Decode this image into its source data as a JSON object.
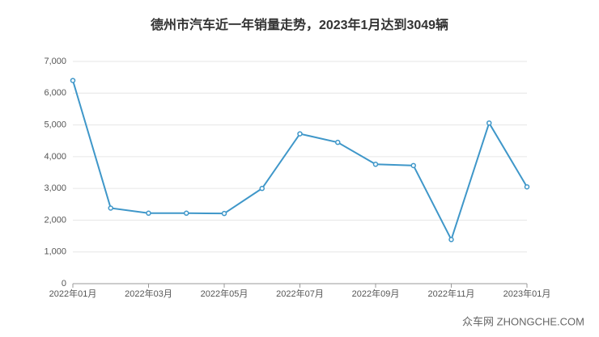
{
  "chart_data": {
    "type": "line",
    "title": "德州市汽车近一年销量走势，2023年1月达到3049辆",
    "categories": [
      "2022年01月",
      null,
      "2022年03月",
      null,
      "2022年05月",
      null,
      "2022年07月",
      null,
      "2022年09月",
      null,
      "2022年11月",
      null,
      "2023年01月"
    ],
    "values": [
      6400,
      2380,
      2220,
      2220,
      2210,
      3000,
      4720,
      4450,
      3760,
      3720,
      1390,
      5060,
      3049
    ],
    "color": "#3f97c9",
    "ylim": [
      0,
      7000
    ],
    "yticks": [
      0,
      {
        "value": 1000,
        "label": "1,000"
      },
      {
        "value": 2000,
        "label": "2,000"
      },
      {
        "value": 3000,
        "label": "3,000"
      },
      {
        "value": 4000,
        "label": "4,000"
      },
      {
        "value": 5000,
        "label": "5,000"
      },
      {
        "value": 6000,
        "label": "6,000"
      },
      {
        "value": 7000,
        "label": "7,000"
      }
    ],
    "grid": true,
    "watermark": "众车网 ZHONGCHE.COM"
  }
}
